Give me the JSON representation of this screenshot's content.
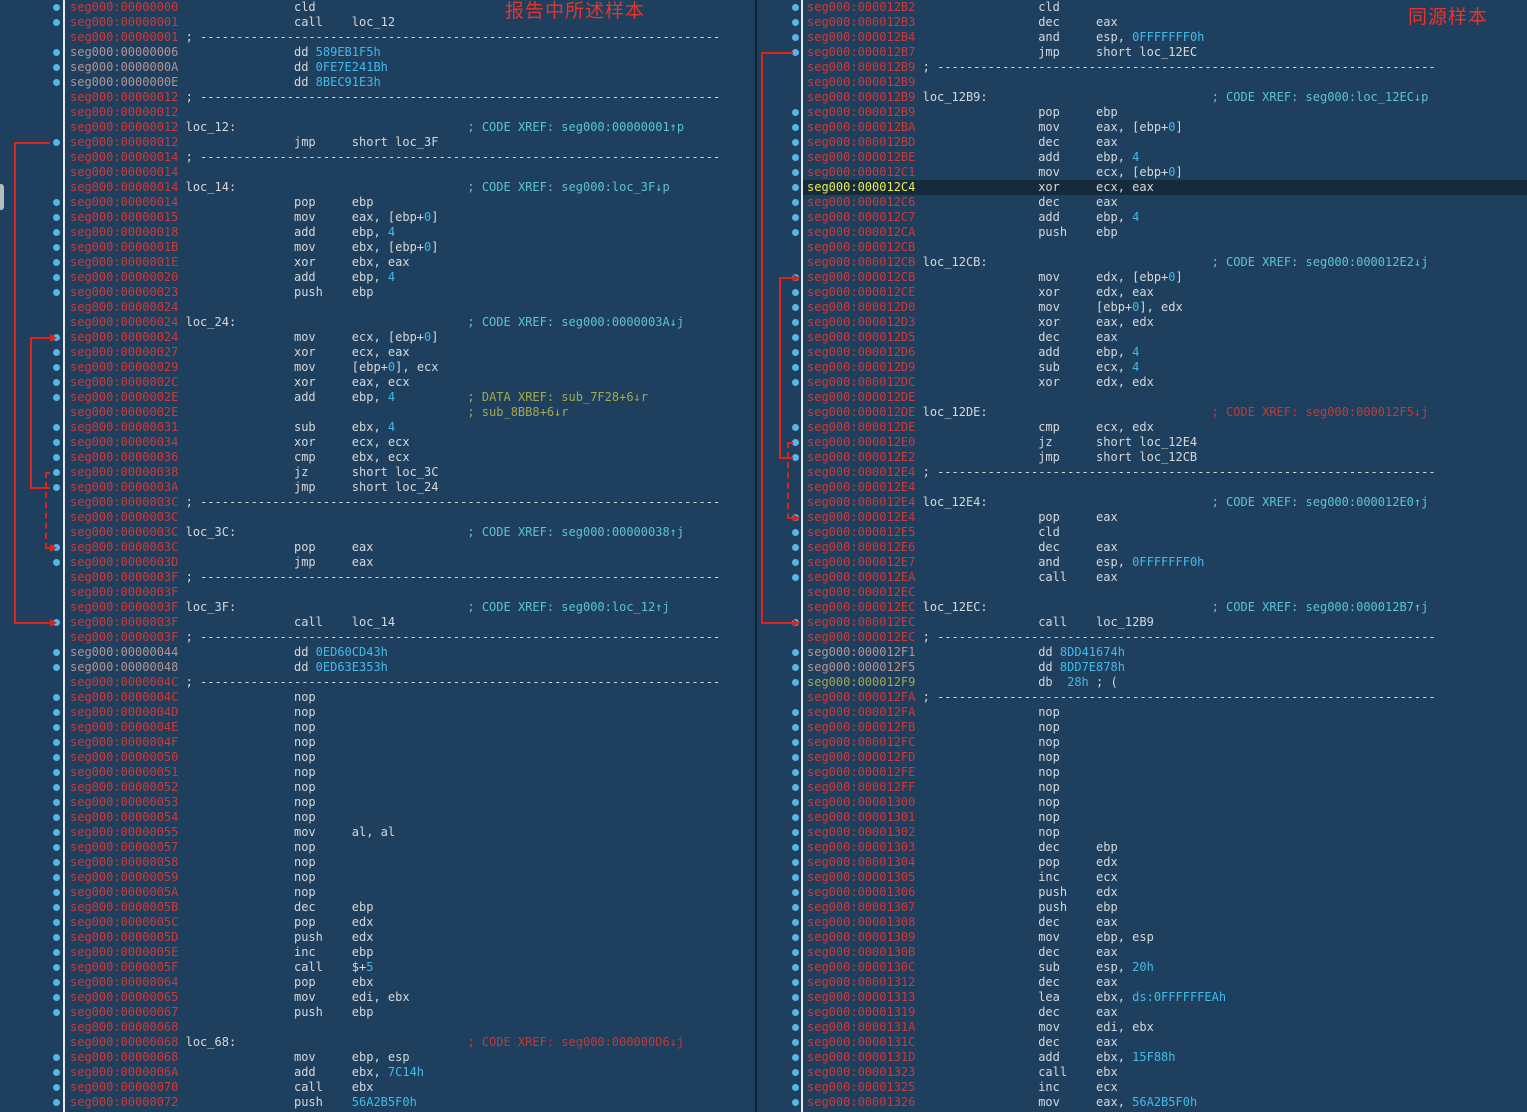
{
  "colors": {
    "background": "#1e3f5e",
    "address_code": "#cd3a38",
    "address_data": "#b59494",
    "address_db_olive": "#a4a84c",
    "address_highlight": "#e9ee55",
    "code_text": "#d5d8db",
    "number": "#41bbe8",
    "comment_teal": "#5cc3d4",
    "comment_olive": "#a3aa4b",
    "comment_red": "#c23a36",
    "dot": "#56b6e8",
    "arrow": "#de231b",
    "highlight_row": "#152a3a",
    "watermark": "#e6352b"
  },
  "panels": [
    {
      "id": "left",
      "watermark": "报告中所述样本",
      "lines": [
        {
          "a": "seg000:00000000",
          "d": 1,
          "m": "cld"
        },
        {
          "a": "seg000:00000001",
          "d": 1,
          "m": "call",
          "o": "loc_12"
        },
        {
          "a": "seg000:00000001",
          "s": 1
        },
        {
          "a": "seg000:00000006",
          "ac": "d",
          "d": 1,
          "m": "dd 589EB1F5h"
        },
        {
          "a": "seg000:0000000A",
          "ac": "d",
          "d": 1,
          "m": "dd 0FE7E241Bh"
        },
        {
          "a": "seg000:0000000E",
          "ac": "d",
          "d": 1,
          "m": "dd 8BEC91E3h"
        },
        {
          "a": "seg000:00000012",
          "s": 1
        },
        {
          "a": "seg000:00000012"
        },
        {
          "a": "seg000:00000012",
          "l": "loc_12:",
          "c": "; CODE XREF: seg000:00000001↑p"
        },
        {
          "a": "seg000:00000012",
          "d": 1,
          "m": "jmp",
          "o": "short loc_3F"
        },
        {
          "a": "seg000:00000014",
          "s": 1
        },
        {
          "a": "seg000:00000014"
        },
        {
          "a": "seg000:00000014",
          "l": "loc_14:",
          "c": "; CODE XREF: seg000:loc_3F↓p"
        },
        {
          "a": "seg000:00000014",
          "d": 1,
          "m": "pop",
          "o": "ebp"
        },
        {
          "a": "seg000:00000015",
          "d": 1,
          "m": "mov",
          "o": "eax, [ebp+0]"
        },
        {
          "a": "seg000:00000018",
          "d": 1,
          "m": "add",
          "o": "ebp, 4"
        },
        {
          "a": "seg000:0000001B",
          "d": 1,
          "m": "mov",
          "o": "ebx, [ebp+0]"
        },
        {
          "a": "seg000:0000001E",
          "d": 1,
          "m": "xor",
          "o": "ebx, eax"
        },
        {
          "a": "seg000:00000020",
          "d": 1,
          "m": "add",
          "o": "ebp, 4"
        },
        {
          "a": "seg000:00000023",
          "d": 1,
          "m": "push",
          "o": "ebp"
        },
        {
          "a": "seg000:00000024"
        },
        {
          "a": "seg000:00000024",
          "l": "loc_24:",
          "c": "; CODE XREF: seg000:0000003A↓j"
        },
        {
          "a": "seg000:00000024",
          "d": 1,
          "m": "mov",
          "o": "ecx, [ebp+0]"
        },
        {
          "a": "seg000:00000027",
          "d": 1,
          "m": "xor",
          "o": "ecx, eax"
        },
        {
          "a": "seg000:00000029",
          "d": 1,
          "m": "mov",
          "o": "[ebp+0], ecx"
        },
        {
          "a": "seg000:0000002C",
          "d": 1,
          "m": "xor",
          "o": "eax, ecx"
        },
        {
          "a": "seg000:0000002E",
          "d": 1,
          "m": "add",
          "o": "ebp, 4",
          "c": "; DATA XREF: sub_7F28+6↓r",
          "cc": "g"
        },
        {
          "a": "seg000:0000002E",
          "c": "; sub_8BB8+6↓r",
          "cc": "g"
        },
        {
          "a": "seg000:00000031",
          "d": 1,
          "m": "sub",
          "o": "ebx, 4"
        },
        {
          "a": "seg000:00000034",
          "d": 1,
          "m": "xor",
          "o": "ecx, ecx"
        },
        {
          "a": "seg000:00000036",
          "d": 1,
          "m": "cmp",
          "o": "ebx, ecx"
        },
        {
          "a": "seg000:00000038",
          "d": 1,
          "m": "jz",
          "o": "short loc_3C"
        },
        {
          "a": "seg000:0000003A",
          "d": 1,
          "m": "jmp",
          "o": "short loc_24"
        },
        {
          "a": "seg000:0000003C",
          "s": 1
        },
        {
          "a": "seg000:0000003C"
        },
        {
          "a": "seg000:0000003C",
          "l": "loc_3C:",
          "c": "; CODE XREF: seg000:00000038↑j"
        },
        {
          "a": "seg000:0000003C",
          "d": 1,
          "m": "pop",
          "o": "eax"
        },
        {
          "a": "seg000:0000003D",
          "d": 1,
          "m": "jmp",
          "o": "eax"
        },
        {
          "a": "seg000:0000003F",
          "s": 1
        },
        {
          "a": "seg000:0000003F"
        },
        {
          "a": "seg000:0000003F",
          "l": "loc_3F:",
          "c": "; CODE XREF: seg000:loc_12↑j"
        },
        {
          "a": "seg000:0000003F",
          "d": 1,
          "m": "call",
          "o": "loc_14"
        },
        {
          "a": "seg000:0000003F",
          "s": 1
        },
        {
          "a": "seg000:00000044",
          "ac": "d",
          "d": 1,
          "m": "dd 0ED60CD43h"
        },
        {
          "a": "seg000:00000048",
          "ac": "d",
          "d": 1,
          "m": "dd 0ED63E353h"
        },
        {
          "a": "seg000:0000004C",
          "s": 1
        },
        {
          "a": "seg000:0000004C",
          "d": 1,
          "m": "nop"
        },
        {
          "a": "seg000:0000004D",
          "d": 1,
          "m": "nop"
        },
        {
          "a": "seg000:0000004E",
          "d": 1,
          "m": "nop"
        },
        {
          "a": "seg000:0000004F",
          "d": 1,
          "m": "nop"
        },
        {
          "a": "seg000:00000050",
          "d": 1,
          "m": "nop"
        },
        {
          "a": "seg000:00000051",
          "d": 1,
          "m": "nop"
        },
        {
          "a": "seg000:00000052",
          "d": 1,
          "m": "nop"
        },
        {
          "a": "seg000:00000053",
          "d": 1,
          "m": "nop"
        },
        {
          "a": "seg000:00000054",
          "d": 1,
          "m": "nop"
        },
        {
          "a": "seg000:00000055",
          "d": 1,
          "m": "mov",
          "o": "al, al"
        },
        {
          "a": "seg000:00000057",
          "d": 1,
          "m": "nop"
        },
        {
          "a": "seg000:00000058",
          "d": 1,
          "m": "nop"
        },
        {
          "a": "seg000:00000059",
          "d": 1,
          "m": "nop"
        },
        {
          "a": "seg000:0000005A",
          "d": 1,
          "m": "nop"
        },
        {
          "a": "seg000:0000005B",
          "d": 1,
          "m": "dec",
          "o": "ebp"
        },
        {
          "a": "seg000:0000005C",
          "d": 1,
          "m": "pop",
          "o": "edx"
        },
        {
          "a": "seg000:0000005D",
          "d": 1,
          "m": "push",
          "o": "edx"
        },
        {
          "a": "seg000:0000005E",
          "d": 1,
          "m": "inc",
          "o": "ebp"
        },
        {
          "a": "seg000:0000005F",
          "d": 1,
          "m": "call",
          "o": "$+5"
        },
        {
          "a": "seg000:00000064",
          "d": 1,
          "m": "pop",
          "o": "ebx"
        },
        {
          "a": "seg000:00000065",
          "d": 1,
          "m": "mov",
          "o": "edi, ebx"
        },
        {
          "a": "seg000:00000067",
          "d": 1,
          "m": "push",
          "o": "ebp"
        },
        {
          "a": "seg000:00000068"
        },
        {
          "a": "seg000:00000068",
          "l": "loc_68:",
          "c": "; CODE XREF: seg000:000000D6↓j",
          "cc": "r"
        },
        {
          "a": "seg000:00000068",
          "d": 1,
          "m": "mov",
          "o": "ebp, esp"
        },
        {
          "a": "seg000:0000006A",
          "d": 1,
          "m": "add",
          "o": "ebx, 7C14h"
        },
        {
          "a": "seg000:00000070",
          "d": 1,
          "m": "call",
          "o": "ebx"
        },
        {
          "a": "seg000:00000072",
          "d": 1,
          "m": "push",
          "o": "56A2B5F0h"
        }
      ],
      "arrows": [
        {
          "from": 10,
          "to": 42,
          "kind": "solid",
          "lane": 0
        },
        {
          "from": 33,
          "to": 23,
          "kind": "solid",
          "lane": 1
        },
        {
          "from": 32,
          "to": 37,
          "kind": "dashed",
          "lane": 2
        }
      ]
    },
    {
      "id": "right",
      "watermark": "同源样本",
      "lines": [
        {
          "a": "seg000:000012B2",
          "d": 1,
          "m": "cld"
        },
        {
          "a": "seg000:000012B3",
          "d": 1,
          "m": "dec",
          "o": "eax"
        },
        {
          "a": "seg000:000012B4",
          "d": 1,
          "m": "and",
          "o": "esp, 0FFFFFFF0h"
        },
        {
          "a": "seg000:000012B7",
          "d": 1,
          "m": "jmp",
          "o": "short loc_12EC"
        },
        {
          "a": "seg000:000012B9",
          "s": 1
        },
        {
          "a": "seg000:000012B9"
        },
        {
          "a": "seg000:000012B9",
          "l": "loc_12B9:",
          "c": "; CODE XREF: seg000:loc_12EC↓p"
        },
        {
          "a": "seg000:000012B9",
          "d": 1,
          "m": "pop",
          "o": "ebp"
        },
        {
          "a": "seg000:000012BA",
          "d": 1,
          "m": "mov",
          "o": "eax, [ebp+0]"
        },
        {
          "a": "seg000:000012BD",
          "d": 1,
          "m": "dec",
          "o": "eax"
        },
        {
          "a": "seg000:000012BE",
          "d": 1,
          "m": "add",
          "o": "ebp, 4"
        },
        {
          "a": "seg000:000012C1",
          "d": 1,
          "m": "mov",
          "o": "ecx, [ebp+0]"
        },
        {
          "a": "seg000:000012C4",
          "ac": "y",
          "h": 1,
          "d": 1,
          "m": "xor",
          "o": "ecx, eax"
        },
        {
          "a": "seg000:000012C6",
          "d": 1,
          "m": "dec",
          "o": "eax"
        },
        {
          "a": "seg000:000012C7",
          "d": 1,
          "m": "add",
          "o": "ebp, 4"
        },
        {
          "a": "seg000:000012CA",
          "d": 1,
          "m": "push",
          "o": "ebp"
        },
        {
          "a": "seg000:000012CB"
        },
        {
          "a": "seg000:000012CB",
          "l": "loc_12CB:",
          "c": "; CODE XREF: seg000:000012E2↓j"
        },
        {
          "a": "seg000:000012CB",
          "d": 1,
          "m": "mov",
          "o": "edx, [ebp+0]"
        },
        {
          "a": "seg000:000012CE",
          "d": 1,
          "m": "xor",
          "o": "edx, eax"
        },
        {
          "a": "seg000:000012D0",
          "d": 1,
          "m": "mov",
          "o": "[ebp+0], edx"
        },
        {
          "a": "seg000:000012D3",
          "d": 1,
          "m": "xor",
          "o": "eax, edx"
        },
        {
          "a": "seg000:000012D5",
          "d": 1,
          "m": "dec",
          "o": "eax"
        },
        {
          "a": "seg000:000012D6",
          "d": 1,
          "m": "add",
          "o": "ebp, 4"
        },
        {
          "a": "seg000:000012D9",
          "d": 1,
          "m": "sub",
          "o": "ecx, 4"
        },
        {
          "a": "seg000:000012DC",
          "d": 1,
          "m": "xor",
          "o": "edx, edx"
        },
        {
          "a": "seg000:000012DE"
        },
        {
          "a": "seg000:000012DE",
          "l": "loc_12DE:",
          "c": "; CODE XREF: seg000:000012F5↓j",
          "cc": "r"
        },
        {
          "a": "seg000:000012DE",
          "d": 1,
          "m": "cmp",
          "o": "ecx, edx"
        },
        {
          "a": "seg000:000012E0",
          "d": 1,
          "m": "jz",
          "o": "short loc_12E4"
        },
        {
          "a": "seg000:000012E2",
          "d": 1,
          "m": "jmp",
          "o": "short loc_12CB"
        },
        {
          "a": "seg000:000012E4",
          "s": 1
        },
        {
          "a": "seg000:000012E4"
        },
        {
          "a": "seg000:000012E4",
          "l": "loc_12E4:",
          "c": "; CODE XREF: seg000:000012E0↑j"
        },
        {
          "a": "seg000:000012E4",
          "d": 1,
          "m": "pop",
          "o": "eax"
        },
        {
          "a": "seg000:000012E5",
          "d": 1,
          "m": "cld"
        },
        {
          "a": "seg000:000012E6",
          "d": 1,
          "m": "dec",
          "o": "eax"
        },
        {
          "a": "seg000:000012E7",
          "d": 1,
          "m": "and",
          "o": "esp, 0FFFFFFF0h"
        },
        {
          "a": "seg000:000012EA",
          "d": 1,
          "m": "call",
          "o": "eax"
        },
        {
          "a": "seg000:000012EC"
        },
        {
          "a": "seg000:000012EC",
          "l": "loc_12EC:",
          "c": "; CODE XREF: seg000:000012B7↑j"
        },
        {
          "a": "seg000:000012EC",
          "d": 1,
          "m": "call",
          "o": "loc_12B9"
        },
        {
          "a": "seg000:000012EC",
          "s": 1
        },
        {
          "a": "seg000:000012F1",
          "ac": "d",
          "d": 1,
          "m": "dd 8DD41674h"
        },
        {
          "a": "seg000:000012F5",
          "ac": "d",
          "d": 1,
          "m": "dd 8DD7E878h"
        },
        {
          "a": "seg000:000012F9",
          "ac": "o",
          "d": 1,
          "m": "db  28h ; ("
        },
        {
          "a": "seg000:000012FA",
          "s": 1
        },
        {
          "a": "seg000:000012FA",
          "d": 1,
          "m": "nop"
        },
        {
          "a": "seg000:000012FB",
          "d": 1,
          "m": "nop"
        },
        {
          "a": "seg000:000012FC",
          "d": 1,
          "m": "nop"
        },
        {
          "a": "seg000:000012FD",
          "d": 1,
          "m": "nop"
        },
        {
          "a": "seg000:000012FE",
          "d": 1,
          "m": "nop"
        },
        {
          "a": "seg000:000012FF",
          "d": 1,
          "m": "nop"
        },
        {
          "a": "seg000:00001300",
          "d": 1,
          "m": "nop"
        },
        {
          "a": "seg000:00001301",
          "d": 1,
          "m": "nop"
        },
        {
          "a": "seg000:00001302",
          "d": 1,
          "m": "nop"
        },
        {
          "a": "seg000:00001303",
          "d": 1,
          "m": "dec",
          "o": "ebp"
        },
        {
          "a": "seg000:00001304",
          "d": 1,
          "m": "pop",
          "o": "edx"
        },
        {
          "a": "seg000:00001305",
          "d": 1,
          "m": "inc",
          "o": "ecx"
        },
        {
          "a": "seg000:00001306",
          "d": 1,
          "m": "push",
          "o": "edx"
        },
        {
          "a": "seg000:00001307",
          "d": 1,
          "m": "push",
          "o": "ebp"
        },
        {
          "a": "seg000:00001308",
          "d": 1,
          "m": "dec",
          "o": "eax"
        },
        {
          "a": "seg000:00001309",
          "d": 1,
          "m": "mov",
          "o": "ebp, esp"
        },
        {
          "a": "seg000:0000130B",
          "d": 1,
          "m": "dec",
          "o": "eax"
        },
        {
          "a": "seg000:0000130C",
          "d": 1,
          "m": "sub",
          "o": "esp, 20h"
        },
        {
          "a": "seg000:00001312",
          "d": 1,
          "m": "dec",
          "o": "eax"
        },
        {
          "a": "seg000:00001313",
          "d": 1,
          "m": "lea",
          "o": "ebx, ds:0FFFFFFEAh"
        },
        {
          "a": "seg000:00001319",
          "d": 1,
          "m": "dec",
          "o": "eax"
        },
        {
          "a": "seg000:0000131A",
          "d": 1,
          "m": "mov",
          "o": "edi, ebx"
        },
        {
          "a": "seg000:0000131C",
          "d": 1,
          "m": "dec",
          "o": "eax"
        },
        {
          "a": "seg000:0000131D",
          "d": 1,
          "m": "add",
          "o": "ebx, 15F88h"
        },
        {
          "a": "seg000:00001323",
          "d": 1,
          "m": "call",
          "o": "ebx"
        },
        {
          "a": "seg000:00001325",
          "d": 1,
          "m": "inc",
          "o": "ecx"
        },
        {
          "a": "seg000:00001326",
          "d": 1,
          "m": "mov",
          "o": "eax, 56A2B5F0h"
        }
      ],
      "arrows": [
        {
          "from": 4,
          "to": 42,
          "kind": "solid",
          "lane": 0
        },
        {
          "from": 31,
          "to": 19,
          "kind": "solid",
          "lane": 1
        },
        {
          "from": 30,
          "to": 35,
          "kind": "dashed",
          "lane": 2
        }
      ]
    }
  ]
}
